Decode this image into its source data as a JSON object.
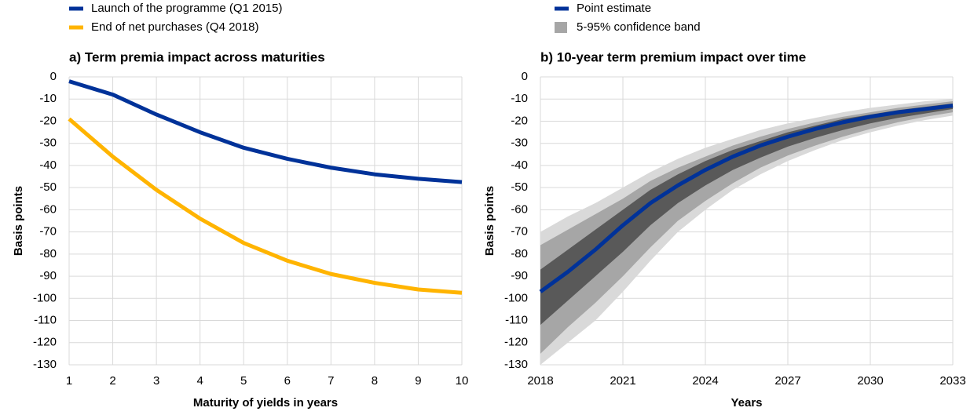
{
  "chart_data": [
    {
      "type": "line",
      "title": "a) Term premia impact across maturities",
      "x_label": "Maturity of yields in years",
      "y_label": "Basis points",
      "x": [
        1,
        2,
        3,
        4,
        5,
        6,
        7,
        8,
        9,
        10
      ],
      "series": [
        {
          "name": "Launch of the programme (Q1 2015)",
          "color": "#003299",
          "values": [
            -2,
            -8,
            -17,
            -25,
            -32,
            -37,
            -41,
            -44,
            -46,
            -47.5
          ]
        },
        {
          "name": "End of net purchases (Q4 2018)",
          "color": "#ffb400",
          "values": [
            -19,
            -36,
            -51,
            -64,
            -75,
            -83,
            -89,
            -93,
            -96,
            -97.5
          ]
        }
      ],
      "xlim": [
        1,
        10
      ],
      "xticks": [
        1,
        2,
        3,
        4,
        5,
        6,
        7,
        8,
        9,
        10
      ],
      "ylim": [
        -130,
        0
      ],
      "yticks": [
        0,
        -10,
        -20,
        -30,
        -40,
        -50,
        -60,
        -70,
        -80,
        -90,
        -100,
        -110,
        -120,
        -130
      ],
      "grid": true
    },
    {
      "type": "line",
      "title": "b) 10-year term premium impact over time",
      "x_label": "Years",
      "y_label": "Basis points",
      "x": [
        2018,
        2019,
        2020,
        2021,
        2022,
        2023,
        2024,
        2025,
        2026,
        2027,
        2028,
        2029,
        2030,
        2031,
        2032,
        2033
      ],
      "band_name": "5-95% confidence band",
      "band_color": "#a6a6a6",
      "bands": [
        {
          "color": "#d9d9d9",
          "lower": [
            -130,
            -120,
            -110,
            -97,
            -83,
            -70,
            -60,
            -51,
            -44,
            -38,
            -33,
            -28.5,
            -25,
            -22,
            -19.5,
            -17.5
          ],
          "upper": [
            -70,
            -63,
            -57,
            -50,
            -43,
            -37,
            -32,
            -28,
            -24,
            -21,
            -18.5,
            -16,
            -14,
            -12.5,
            -11,
            -10
          ]
        },
        {
          "color": "#a6a6a6",
          "lower": [
            -125,
            -113,
            -102,
            -90,
            -77,
            -65,
            -56,
            -48,
            -41,
            -35.5,
            -31,
            -27,
            -23.5,
            -20.5,
            -18,
            -16
          ],
          "upper": [
            -76,
            -69,
            -62,
            -55,
            -47,
            -41,
            -36,
            -31,
            -27,
            -23.5,
            -20.5,
            -18,
            -16,
            -14,
            -12.5,
            -11
          ]
        },
        {
          "color": "#595959",
          "lower": [
            -112,
            -101,
            -90,
            -79,
            -67,
            -57,
            -49,
            -42,
            -36.5,
            -31.5,
            -27.5,
            -24,
            -21,
            -18.5,
            -16.5,
            -14.5
          ],
          "upper": [
            -87,
            -78,
            -69,
            -60,
            -51,
            -44,
            -38,
            -33,
            -29,
            -25,
            -22,
            -19,
            -17,
            -15,
            -13.5,
            -12
          ]
        }
      ],
      "series": [
        {
          "name": "Point estimate",
          "color": "#003299",
          "values": [
            -97,
            -88,
            -78,
            -67,
            -57,
            -49,
            -42,
            -36,
            -31,
            -27,
            -23.5,
            -20.5,
            -18,
            -16,
            -14.5,
            -13
          ]
        }
      ],
      "xlim": [
        2018,
        2033
      ],
      "xticks": [
        2018,
        2021,
        2024,
        2027,
        2030,
        2033
      ],
      "ylim": [
        -130,
        0
      ],
      "yticks": [
        0,
        -10,
        -20,
        -30,
        -40,
        -50,
        -60,
        -70,
        -80,
        -90,
        -100,
        -110,
        -120,
        -130
      ],
      "grid": true
    }
  ]
}
